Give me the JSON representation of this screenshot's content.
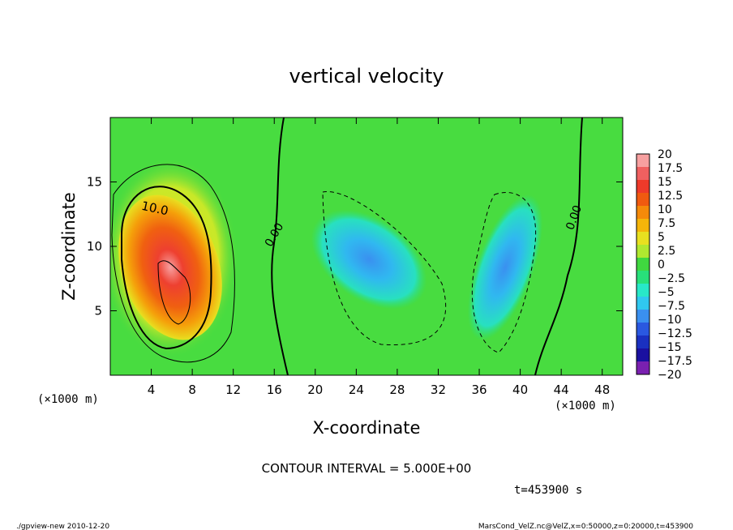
{
  "chart_data": {
    "type": "heatmap",
    "title": "vertical velocity",
    "xlabel": "X-coordinate",
    "ylabel": "Z-coordinate",
    "x_unit_left": "(×1000 m)",
    "x_unit_right": "(×1000 m)",
    "y_unit": "(×1000 m)",
    "xlim": [
      0,
      50
    ],
    "ylim": [
      0,
      20
    ],
    "x_ticks": [
      4,
      8,
      12,
      16,
      20,
      24,
      28,
      32,
      36,
      40,
      44,
      48
    ],
    "y_ticks": [
      5,
      10,
      15
    ],
    "contour_labels": [
      "10.0",
      "0.00",
      "0.00"
    ],
    "contour_interval_text": "CONTOUR INTERVAL = 5.000E+00",
    "time_text": "t=453900 s",
    "colorbar": {
      "levels": [
        20,
        17.5,
        15,
        12.5,
        10,
        7.5,
        5,
        2.5,
        0,
        -2.5,
        -5,
        -7.5,
        -10,
        -12.5,
        -15,
        -17.5,
        -20
      ],
      "labels": [
        "20",
        "17.5",
        "15",
        "12.5",
        "10",
        "7.5",
        "5",
        "2.5",
        "0",
        "−2.5",
        "−5",
        "−7.5",
        "−10",
        "−12.5",
        "−15",
        "−17.5",
        "−20"
      ],
      "colors": [
        "#f7a0a0",
        "#f06060",
        "#ee3a2a",
        "#f05a10",
        "#f58a0a",
        "#f5b50a",
        "#e8e020",
        "#b0e830",
        "#40d840",
        "#28e07a",
        "#28e8c8",
        "#30c8f0",
        "#3a90f0",
        "#2a58e0",
        "#1a30c0",
        "#1a10a0",
        "#7a20b0"
      ]
    },
    "features": [
      {
        "kind": "updraft_max",
        "x_center": 7,
        "z_center": 7,
        "peak_value": 18.5
      },
      {
        "kind": "updraft_halo",
        "x_center": 7,
        "z_center": 9,
        "value": 5
      },
      {
        "kind": "downdraft",
        "x_center": 25,
        "z_center": 9,
        "peak_value": -10
      },
      {
        "kind": "downdraft",
        "x_center": 37,
        "z_center": 7,
        "peak_value": -12
      }
    ]
  },
  "footer": {
    "left": "./gpview-new  2010-12-20",
    "right": "MarsCond_VelZ.nc@VelZ,x=0:50000,z=0:20000,t=453900"
  }
}
